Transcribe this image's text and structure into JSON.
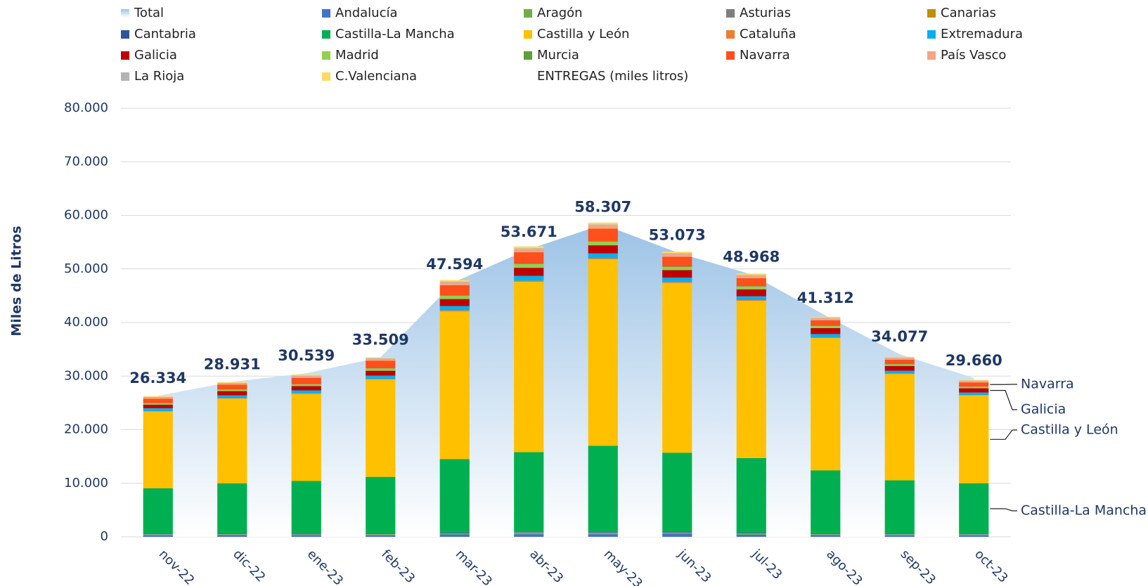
{
  "chart_data": {
    "type": "stacked-bar-area",
    "y_axis_title": "Miles de Litros",
    "categories": [
      "nov-22",
      "dic-22",
      "ene-23",
      "feb-23",
      "mar-23",
      "abr-23",
      "may-23",
      "jun-23",
      "jul-23",
      "ago-23",
      "sep-23",
      "oct-23"
    ],
    "ylim": [
      0,
      80000
    ],
    "yticks": [
      0,
      {
        "value": 10000,
        "label": "10.000"
      },
      {
        "value": 20000,
        "label": "20.000"
      },
      {
        "value": 30000,
        "label": "30.000"
      },
      {
        "value": 40000,
        "label": "40.000"
      },
      {
        "value": 50000,
        "label": "50.000"
      },
      {
        "value": 60000,
        "label": "60.000"
      },
      {
        "value": 70000,
        "label": "70.000"
      },
      {
        "value": 80000,
        "label": "80.000"
      }
    ],
    "grid": true,
    "total": {
      "name": "Total",
      "color": "#bdd7ee",
      "values": [
        26334,
        28931,
        30539,
        33509,
        47594,
        53671,
        58307,
        53073,
        48968,
        41312,
        34077,
        29660
      ],
      "value_labels": [
        "26.334",
        "28.931",
        "30.539",
        "33.509",
        "47.594",
        "53.671",
        "58.307",
        "53.073",
        "48.968",
        "41.312",
        "34.077",
        "29.660"
      ]
    },
    "series": [
      {
        "name": "Andalucía",
        "color": "#4472c4",
        "values": [
          300,
          350,
          300,
          300,
          450,
          500,
          500,
          600,
          400,
          350,
          300,
          300
        ]
      },
      {
        "name": "Aragón",
        "color": "#70ad47",
        "values": [
          80,
          100,
          100,
          150,
          150,
          250,
          200,
          150,
          200,
          100,
          80,
          80
        ]
      },
      {
        "name": "Asturias",
        "color": "#7f7f7f",
        "values": [
          30,
          30,
          30,
          30,
          40,
          40,
          40,
          40,
          40,
          30,
          30,
          30
        ]
      },
      {
        "name": "Canarias",
        "color": "#bf9000",
        "values": [
          20,
          20,
          20,
          20,
          20,
          20,
          20,
          20,
          20,
          20,
          20,
          20
        ]
      },
      {
        "name": "Cantabria",
        "color": "#2f5597",
        "values": [
          70,
          100,
          70,
          100,
          140,
          90,
          140,
          190,
          140,
          100,
          70,
          70
        ]
      },
      {
        "name": "Castilla-La Mancha",
        "color": "#00b050",
        "values": [
          8550,
          9370,
          9910,
          10590,
          13700,
          14900,
          16100,
          14700,
          13900,
          11800,
          10050,
          9500
        ]
      },
      {
        "name": "Castilla y León",
        "color": "#ffc000",
        "values": [
          14330,
          15830,
          16250,
          18160,
          27580,
          31810,
          34810,
          31670,
          29350,
          24700,
          19850,
          16380
        ]
      },
      {
        "name": "Cataluña",
        "color": "#ed7d31",
        "values": [
          100,
          100,
          100,
          150,
          200,
          200,
          200,
          200,
          150,
          150,
          100,
          100
        ]
      },
      {
        "name": "Extremadura",
        "color": "#00b0f0",
        "values": [
          500,
          500,
          550,
          600,
          800,
          900,
          900,
          800,
          700,
          600,
          500,
          450
        ]
      },
      {
        "name": "Galicia",
        "color": "#c00000",
        "values": [
          700,
          800,
          800,
          900,
          1300,
          1500,
          1500,
          1400,
          1300,
          1100,
          900,
          800
        ]
      },
      {
        "name": "Madrid",
        "color": "#92d050",
        "values": [
          250,
          250,
          300,
          400,
          600,
          700,
          700,
          600,
          500,
          400,
          300,
          250
        ]
      },
      {
        "name": "Murcia",
        "color": "#5f9e3a",
        "values": [
          50,
          50,
          50,
          60,
          100,
          100,
          100,
          100,
          80,
          70,
          60,
          50
        ]
      },
      {
        "name": "Navarra",
        "color": "#ff4f1a",
        "values": [
          800,
          900,
          1200,
          1400,
          1900,
          2100,
          2300,
          1800,
          1500,
          1000,
          800,
          800
        ]
      },
      {
        "name": "País Vasco",
        "color": "#f4a582",
        "values": [
          250,
          250,
          300,
          350,
          500,
          600,
          600,
          500,
          450,
          350,
          300,
          250
        ]
      },
      {
        "name": "La Rioja",
        "color": "#b4b4b4",
        "values": [
          80,
          80,
          100,
          100,
          150,
          150,
          200,
          150,
          150,
          100,
          100,
          80
        ]
      },
      {
        "name": "C.Valenciana",
        "color": "#ffd966",
        "values": [
          150,
          150,
          200,
          200,
          300,
          350,
          350,
          300,
          250,
          200,
          150,
          150
        ]
      }
    ],
    "legend_extra": "ENTREGAS (miles litros)",
    "annotations": [
      "Navarra",
      "Galicia",
      "Castilla y León",
      "Castilla-La Mancha"
    ]
  }
}
